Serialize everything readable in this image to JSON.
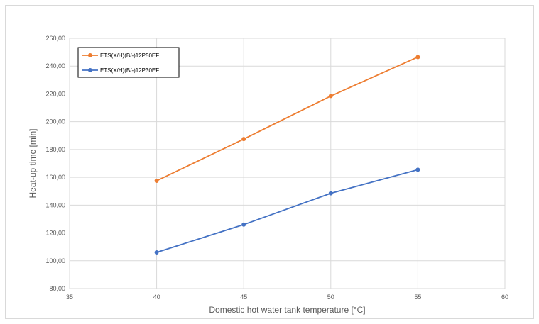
{
  "chart_data": {
    "type": "line",
    "title": "",
    "xlabel": "Domestic hot water tank temperature [°C]",
    "ylabel": "Heat-up time [min]",
    "xlim": [
      35,
      60
    ],
    "ylim": [
      80,
      260
    ],
    "xticks": [
      "35",
      "40",
      "45",
      "50",
      "55",
      "60"
    ],
    "yticks": [
      "80,00",
      "100,00",
      "120,00",
      "140,00",
      "160,00",
      "180,00",
      "200,00",
      "220,00",
      "240,00",
      "260,00"
    ],
    "grid": "both",
    "legend_position": "top-left",
    "series": [
      {
        "name": "ETS(X/H)(B/-)12P50EF",
        "color": "#ED7D31",
        "x": [
          40,
          45,
          50,
          55
        ],
        "y": [
          157.5,
          187.5,
          218.5,
          246.5
        ]
      },
      {
        "name": "ETS(X/H)(B/-)12P30EF",
        "color": "#4472C4",
        "x": [
          40,
          45,
          50,
          55
        ],
        "y": [
          106,
          126,
          148.5,
          165.5
        ]
      }
    ]
  }
}
